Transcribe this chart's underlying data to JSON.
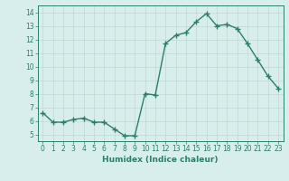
{
  "x": [
    0,
    1,
    2,
    3,
    4,
    5,
    6,
    7,
    8,
    9,
    10,
    11,
    12,
    13,
    14,
    15,
    16,
    17,
    18,
    19,
    20,
    21,
    22,
    23
  ],
  "y": [
    6.6,
    5.9,
    5.9,
    6.1,
    6.2,
    5.9,
    5.9,
    5.4,
    4.9,
    4.9,
    8.0,
    7.9,
    11.7,
    12.3,
    12.5,
    13.3,
    13.9,
    13.0,
    13.1,
    12.8,
    11.7,
    10.5,
    9.3,
    8.4
  ],
  "line_color": "#2d7d6e",
  "marker": "+",
  "markersize": 4,
  "linewidth": 1.0,
  "bg_color": "#d8eeec",
  "grid_color": "#c0d8d4",
  "xlabel": "Humidex (Indice chaleur)",
  "xlim": [
    -0.5,
    23.5
  ],
  "ylim": [
    4.5,
    14.5
  ],
  "yticks": [
    5,
    6,
    7,
    8,
    9,
    10,
    11,
    12,
    13,
    14
  ],
  "xticks": [
    0,
    1,
    2,
    3,
    4,
    5,
    6,
    7,
    8,
    9,
    10,
    11,
    12,
    13,
    14,
    15,
    16,
    17,
    18,
    19,
    20,
    21,
    22,
    23
  ],
  "tick_color": "#2d7d6e",
  "label_color": "#2d7d6e",
  "xlabel_fontsize": 6.5,
  "tick_fontsize": 5.5,
  "spine_color": "#2d7d6e"
}
